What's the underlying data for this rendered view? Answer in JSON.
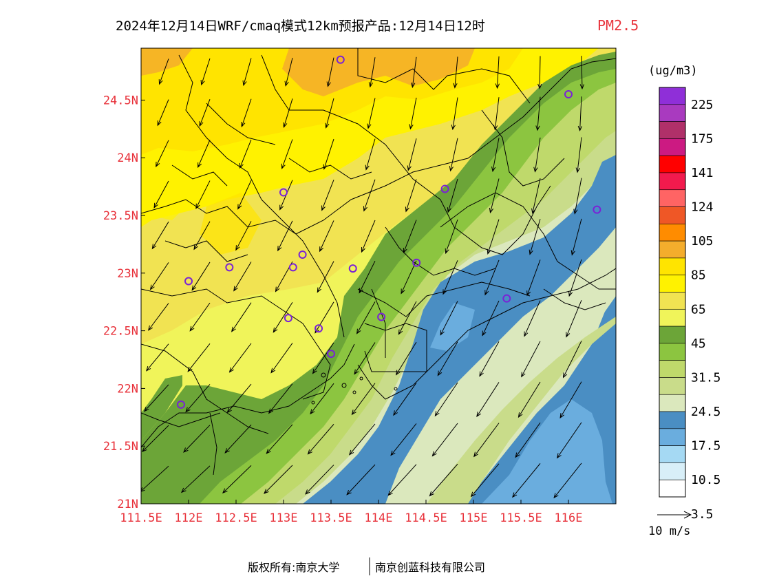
{
  "header": {
    "title": "2024年12月14日WRF/cmaq模式12km预报产品:12月14日12时",
    "variable": "PM2.5",
    "variable_color": "#e8313a"
  },
  "axes": {
    "x_ticks": [
      "111.5E",
      "112E",
      "112.5E",
      "113E",
      "113.5E",
      "114E",
      "114.5E",
      "115E",
      "115.5E",
      "116E"
    ],
    "x_values": [
      111.5,
      112,
      112.5,
      113,
      113.5,
      114,
      114.5,
      115,
      115.5,
      116
    ],
    "y_ticks": [
      "21N",
      "21.5N",
      "22N",
      "22.5N",
      "23N",
      "23.5N",
      "24N",
      "24.5N"
    ],
    "y_values": [
      21,
      21.5,
      22,
      22.5,
      23,
      23.5,
      24,
      24.5
    ],
    "lon_range": [
      111.5,
      116.5
    ],
    "lat_range": [
      21,
      24.95
    ],
    "tick_color": "#e8313a"
  },
  "colorbar": {
    "unit": "(ug/m3)",
    "labels": [
      "225",
      "175",
      "141",
      "124",
      "105",
      "85",
      "65",
      "45",
      "31.5",
      "24.5",
      "17.5",
      "10.5",
      "3.5"
    ],
    "colors": [
      "#8f2fd8",
      "#a93abf",
      "#b03069",
      "#cc1a82",
      "#ff0000",
      "#f21a4d",
      "#ff6464",
      "#ef5726",
      "#ff8c00",
      "#f4ad2c",
      "#ffe400",
      "#fff200",
      "#f1e352",
      "#f0f45a",
      "#6ca538",
      "#8cc540",
      "#bfd96b",
      "#c9dc8a",
      "#dbe8bd",
      "#4a8ec3",
      "#6aadde",
      "#a5d9f3",
      "#d8eff8",
      "#ffffff"
    ]
  },
  "wind_legend": {
    "label": "10 m/s"
  },
  "stations": [
    {
      "lon": 113.6,
      "lat": 24.85
    },
    {
      "lon": 116.0,
      "lat": 24.55
    },
    {
      "lon": 113.0,
      "lat": 23.7
    },
    {
      "lon": 114.7,
      "lat": 23.73
    },
    {
      "lon": 116.3,
      "lat": 23.55
    },
    {
      "lon": 112.0,
      "lat": 22.93
    },
    {
      "lon": 112.43,
      "lat": 23.05
    },
    {
      "lon": 113.1,
      "lat": 23.05
    },
    {
      "lon": 113.2,
      "lat": 23.16
    },
    {
      "lon": 113.73,
      "lat": 23.04
    },
    {
      "lon": 114.4,
      "lat": 23.09
    },
    {
      "lon": 115.35,
      "lat": 22.78
    },
    {
      "lon": 113.05,
      "lat": 22.61
    },
    {
      "lon": 113.37,
      "lat": 22.52
    },
    {
      "lon": 114.03,
      "lat": 22.62
    },
    {
      "lon": 113.5,
      "lat": 22.3
    },
    {
      "lon": 111.92,
      "lat": 21.86
    }
  ],
  "footer": {
    "left": "版权所有:南京大学",
    "right": "南京创蓝科技有限公司"
  }
}
